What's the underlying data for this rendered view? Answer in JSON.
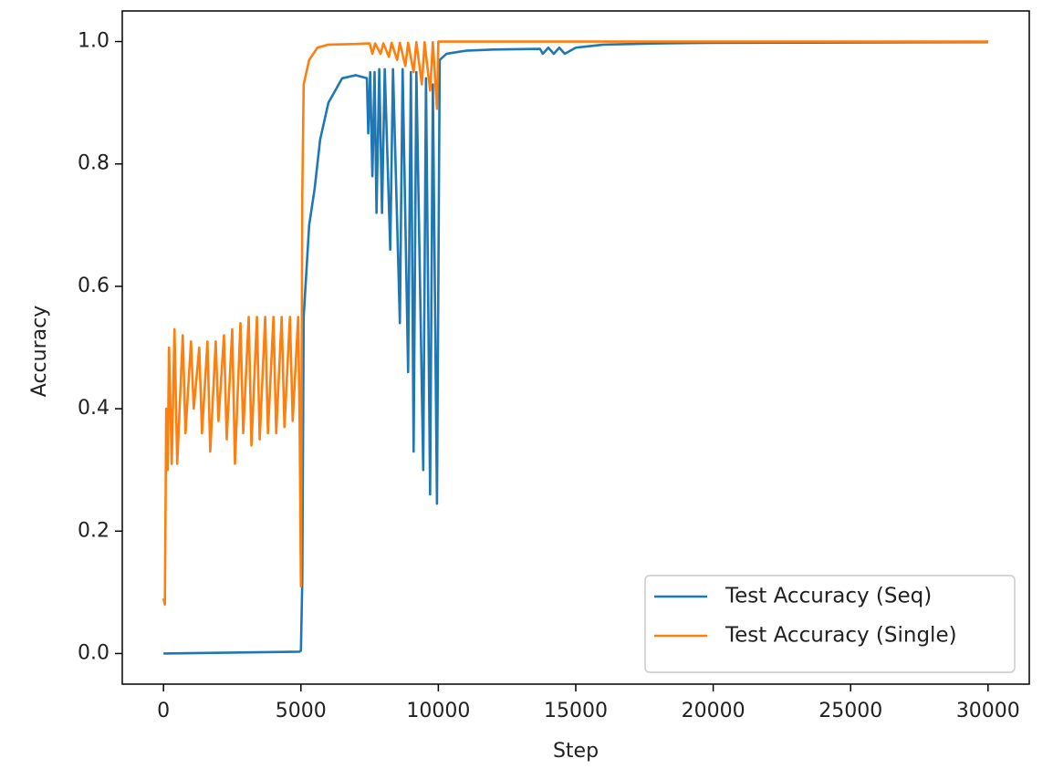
{
  "chart_data": {
    "type": "line",
    "xlabel": "Step",
    "ylabel": "Accuracy",
    "xlim": [
      -1500,
      31500
    ],
    "ylim": [
      -0.05,
      1.05
    ],
    "xticks": [
      0,
      5000,
      10000,
      15000,
      20000,
      25000,
      30000
    ],
    "yticks": [
      {
        "value": 0,
        "label": "0.0"
      },
      0.2,
      0.4,
      0.6,
      0.8,
      {
        "value": 1,
        "label": "1.0"
      }
    ],
    "grid": false,
    "legend": "lower right",
    "series": [
      {
        "name": "Test Accuracy (Seq)",
        "color": "#1f77b4",
        "x": [
          0,
          4950,
          5000,
          5050,
          5100,
          5300,
          5500,
          5700,
          6000,
          6500,
          7000,
          7400,
          7450,
          7520,
          7600,
          7680,
          7750,
          7850,
          7950,
          8050,
          8250,
          8350,
          8600,
          8700,
          8900,
          9000,
          9100,
          9200,
          9450,
          9550,
          9700,
          9800,
          9950,
          10050,
          10300,
          11000,
          12000,
          13700,
          13800,
          14000,
          14200,
          14400,
          14600,
          15000,
          16000,
          18000,
          20000,
          30000
        ],
        "values": [
          0.0,
          0.003,
          0.005,
          0.12,
          0.55,
          0.7,
          0.76,
          0.84,
          0.9,
          0.94,
          0.945,
          0.94,
          0.85,
          0.95,
          0.78,
          0.95,
          0.72,
          0.955,
          0.72,
          0.955,
          0.66,
          0.955,
          0.54,
          0.955,
          0.46,
          0.95,
          0.33,
          0.95,
          0.3,
          0.94,
          0.26,
          0.93,
          0.245,
          0.97,
          0.98,
          0.985,
          0.987,
          0.988,
          0.98,
          0.99,
          0.98,
          0.99,
          0.98,
          0.99,
          0.995,
          0.997,
          0.998,
          0.999
        ]
      },
      {
        "name": "Test Accuracy (Single)",
        "color": "#ff7f0e",
        "x": [
          0,
          50,
          100,
          150,
          200,
          300,
          400,
          500,
          700,
          800,
          1000,
          1100,
          1300,
          1400,
          1600,
          1700,
          1900,
          2000,
          2200,
          2300,
          2500,
          2600,
          2800,
          2900,
          3100,
          3200,
          3400,
          3500,
          3700,
          3800,
          4000,
          4100,
          4300,
          4400,
          4600,
          4700,
          4900,
          4950,
          5000,
          5050,
          5100,
          5300,
          5600,
          6000,
          7000,
          7500,
          7600,
          7700,
          7900,
          8000,
          8200,
          8300,
          8500,
          8600,
          8800,
          8900,
          9100,
          9200,
          9400,
          9500,
          9700,
          9800,
          9950,
          10000,
          15000,
          30000
        ],
        "values": [
          0.09,
          0.08,
          0.4,
          0.3,
          0.5,
          0.31,
          0.53,
          0.31,
          0.52,
          0.36,
          0.51,
          0.4,
          0.5,
          0.36,
          0.51,
          0.33,
          0.51,
          0.38,
          0.52,
          0.35,
          0.53,
          0.31,
          0.54,
          0.36,
          0.55,
          0.34,
          0.55,
          0.35,
          0.55,
          0.36,
          0.55,
          0.36,
          0.55,
          0.37,
          0.55,
          0.38,
          0.55,
          0.39,
          0.11,
          0.75,
          0.93,
          0.97,
          0.99,
          0.995,
          0.996,
          0.997,
          0.98,
          0.997,
          0.98,
          0.997,
          0.975,
          0.998,
          0.97,
          0.998,
          0.96,
          0.998,
          0.95,
          0.999,
          0.93,
          0.999,
          0.92,
          0.999,
          0.89,
          1.0,
          1.0,
          1.0
        ]
      }
    ]
  }
}
